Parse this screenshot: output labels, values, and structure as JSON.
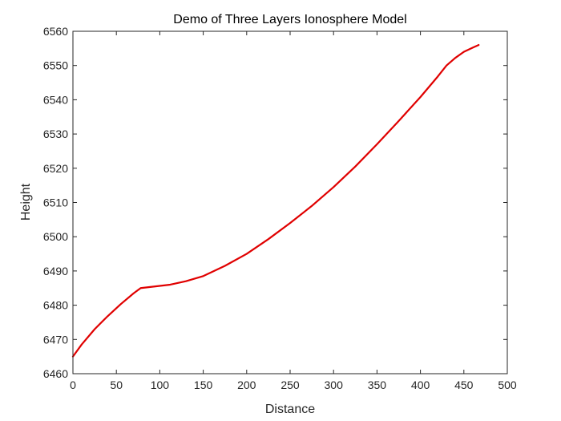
{
  "chart_data": {
    "type": "line",
    "title": "Demo of Three Layers Ionosphere Model",
    "xlabel": "Distance",
    "ylabel": "Height",
    "xlim": [
      0,
      500
    ],
    "ylim": [
      6460,
      6560
    ],
    "xticks": [
      0,
      50,
      100,
      150,
      200,
      250,
      300,
      350,
      400,
      450,
      500
    ],
    "yticks": [
      6460,
      6470,
      6480,
      6490,
      6500,
      6510,
      6520,
      6530,
      6540,
      6550,
      6560
    ],
    "grid": false,
    "legend": "none",
    "series": [
      {
        "color": "#e00000",
        "x": [
          0,
          10,
          25,
          40,
          55,
          70,
          78,
          95,
          112,
          130,
          150,
          175,
          200,
          225,
          250,
          275,
          300,
          325,
          350,
          375,
          400,
          420,
          430,
          440,
          450,
          460,
          467
        ],
        "y": [
          6465,
          6468.5,
          6473,
          6476.8,
          6480.3,
          6483.5,
          6485,
          6485.5,
          6486,
          6487,
          6488.5,
          6491.5,
          6495,
          6499.3,
          6504,
          6509,
          6514.5,
          6520.5,
          6527,
          6533.8,
          6540.8,
          6546.8,
          6550,
          6552.2,
          6554,
          6555.2,
          6556
        ]
      }
    ]
  }
}
